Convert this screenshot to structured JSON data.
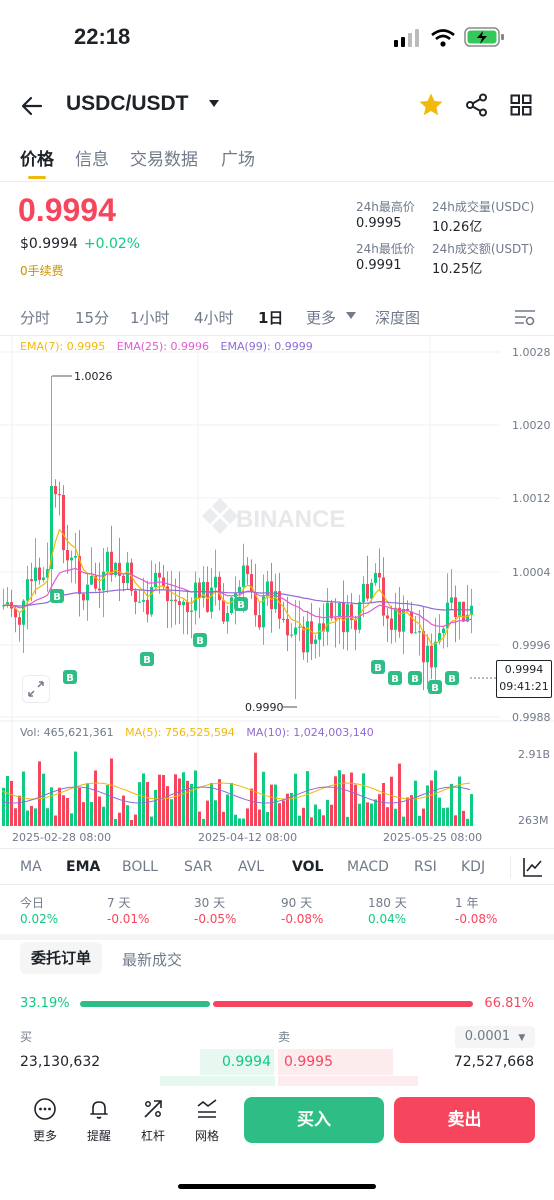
{
  "status_bar": {
    "time": "22:18"
  },
  "header": {
    "pair": "USDC/USDT"
  },
  "tabs": [
    "价格",
    "信息",
    "交易数据",
    "广场"
  ],
  "price": {
    "last": "0.9994",
    "usd": "$0.9994",
    "change": "+0.02%",
    "fee_tag": "0手续费"
  },
  "stats": {
    "high_label": "24h最高价",
    "high": "0.9995",
    "low_label": "24h最低价",
    "low": "0.9991",
    "vol_base_label": "24h成交量(USDC)",
    "vol_base": "10.26亿",
    "vol_quote_label": "24h成交额(USDT)",
    "vol_quote": "10.25亿"
  },
  "intervals": [
    "分时",
    "15分",
    "1小时",
    "4小时",
    "1日",
    "更多",
    "深度图"
  ],
  "ema_legend": {
    "ema7": "EMA(7): 0.9995",
    "ema25": "EMA(25): 0.9996",
    "ema99": "EMA(99): 0.9999"
  },
  "colors": {
    "up": "#0ecb81",
    "down": "#f6465d",
    "brand": "#f0b90b",
    "ema7": "#f0b90b",
    "ema25": "#e05ad1",
    "ema99": "#8e6bd6"
  },
  "chart_data": {
    "type": "candlestick",
    "price_axis": [
      "1.0028",
      "1.0020",
      "1.0012",
      "1.0004",
      "0.9996",
      "0.9988"
    ],
    "current_price": "0.9994",
    "countdown": "09:41:21",
    "high_marker": "1.0026",
    "low_marker": "0.9990",
    "watermark": "BINANCE",
    "volume_legend": {
      "vol": "Vol: 465,621,361",
      "ma5": "MA(5): 756,525,594",
      "ma10": "MA(10): 1,024,003,140"
    },
    "volume_axis": [
      "2.91B",
      "263M"
    ],
    "dates": [
      "2025-02-28 08:00",
      "2025-04-12 08:00",
      "2025-05-25 08:00"
    ],
    "buy_marker_label": "B"
  },
  "indicator_tabs": [
    "MA",
    "EMA",
    "BOLL",
    "SAR",
    "AVL",
    "VOL",
    "MACD",
    "RSI",
    "KDJ"
  ],
  "performance": [
    {
      "label": "今日",
      "value": "0.02%"
    },
    {
      "label": "7 天",
      "value": "-0.01%"
    },
    {
      "label": "30 天",
      "value": "-0.05%"
    },
    {
      "label": "90 天",
      "value": "-0.08%"
    },
    {
      "label": "180 天",
      "value": "0.04%"
    },
    {
      "label": "1 年",
      "value": "-0.08%"
    }
  ],
  "orderbook": {
    "tab_active": "委托订单",
    "tab_other": "最新成交",
    "buy_ratio": "33.19%",
    "sell_ratio": "66.81%",
    "buy_label": "买",
    "sell_label": "卖",
    "precision": "0.0001",
    "rows": [
      {
        "bid_qty": "23,130,632",
        "bid": "0.9994",
        "ask": "0.9995",
        "ask_qty": "72,527,668"
      }
    ]
  },
  "bottom_nav": [
    "更多",
    "提醒",
    "杠杆",
    "网格"
  ],
  "actions": {
    "buy": "买入",
    "sell": "卖出"
  }
}
